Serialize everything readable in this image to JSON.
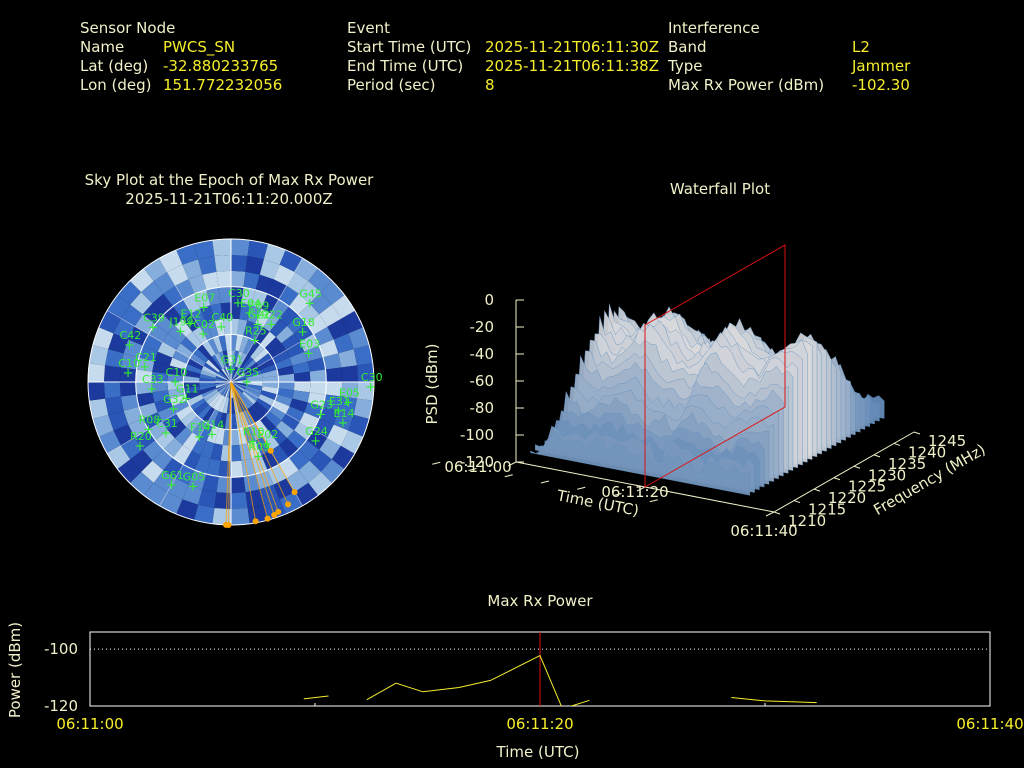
{
  "header": {
    "sensor": {
      "title": "Sensor Node",
      "name_label": "Name",
      "name": "PWCS_SN",
      "lat_label": "Lat (deg)",
      "lat": "-32.880233765",
      "lon_label": "Lon (deg)",
      "lon": "151.772232056"
    },
    "event": {
      "title": "Event",
      "start_label": "Start Time (UTC)",
      "start": "2025-11-21T06:11:30Z",
      "end_label": "End Time (UTC)",
      "end": "2025-11-21T06:11:38Z",
      "period_label": "Period (sec)",
      "period": "8"
    },
    "interference": {
      "title": "Interference",
      "band_label": "Band",
      "band": "L2",
      "type_label": "Type",
      "type": "Jammer",
      "power_label": "Max Rx Power (dBm)",
      "power": "-102.30"
    }
  },
  "colors": {
    "label": "#f2f0c8",
    "value": "#f6ee2a",
    "satellite": "#33ee33",
    "track": "#ffa500",
    "marker": "#dd1111",
    "axis": "#f2f0c8",
    "sky_dark": "#1f3fa8",
    "sky_light": "#9ec4e4"
  },
  "chart_data": [
    {
      "type": "scatter",
      "subtype": "polar-skyplot",
      "title": "Sky Plot at the Epoch of Max Rx Power",
      "subtitle": "2025-11-21T06:11:20.000Z",
      "rings_elevation_deg": [
        0,
        30,
        60,
        90
      ],
      "satellites": [
        {
          "id": "G31",
          "az": 0,
          "el": 82
        },
        {
          "id": "E07",
          "az": 340,
          "el": 40
        },
        {
          "id": "C02",
          "az": 330,
          "el": 55
        },
        {
          "id": "C39",
          "az": 305,
          "el": 30
        },
        {
          "id": "G22",
          "az": 25,
          "el": 50
        },
        {
          "id": "E09",
          "az": 22,
          "el": 45
        },
        {
          "id": "R22",
          "az": 35,
          "el": 46
        },
        {
          "id": "G45",
          "az": 45,
          "el": 20
        },
        {
          "id": "G18",
          "az": 55,
          "el": 35
        },
        {
          "id": "E03",
          "az": 70,
          "el": 38
        },
        {
          "id": "C30",
          "az": 92,
          "el": 2
        },
        {
          "id": "E12",
          "az": 325,
          "el": 45
        },
        {
          "id": "C30",
          "az": 5,
          "el": 40
        },
        {
          "id": "E04",
          "az": 15,
          "el": 45
        },
        {
          "id": "R25",
          "az": 30,
          "el": 60
        },
        {
          "id": "C40",
          "az": 350,
          "el": 55
        },
        {
          "id": "C42",
          "az": 290,
          "el": 22
        },
        {
          "id": "J199",
          "az": 315,
          "el": 45
        },
        {
          "id": "C21",
          "az": 280,
          "el": 35
        },
        {
          "id": "C10",
          "az": 270,
          "el": 55
        },
        {
          "id": "C33",
          "az": 265,
          "el": 40
        },
        {
          "id": "G11",
          "az": 250,
          "el": 60
        },
        {
          "id": "G32",
          "az": 245,
          "el": 50
        },
        {
          "id": "R08",
          "az": 240,
          "el": 30
        },
        {
          "id": "C31",
          "az": 232,
          "el": 38
        },
        {
          "id": "R20",
          "az": 235,
          "el": 20
        },
        {
          "id": "F14",
          "az": 210,
          "el": 50
        },
        {
          "id": "G14",
          "az": 200,
          "el": 55
        },
        {
          "id": "G23",
          "az": 110,
          "el": 30
        },
        {
          "id": "E05",
          "az": 100,
          "el": 15
        },
        {
          "id": "E31",
          "az": 105,
          "el": 20
        },
        {
          "id": "E14",
          "az": 110,
          "el": 15
        },
        {
          "id": "G24",
          "az": 125,
          "el": 25
        },
        {
          "id": "E02",
          "az": 150,
          "el": 45
        },
        {
          "id": "R09",
          "az": 160,
          "el": 40
        },
        {
          "id": "R10",
          "az": 160,
          "el": 50
        },
        {
          "id": "G05",
          "az": 200,
          "el": 20
        },
        {
          "id": "G61",
          "az": 210,
          "el": 15
        },
        {
          "id": "C10",
          "az": 275,
          "el": 25
        },
        {
          "id": "G35",
          "az": 90,
          "el": 80
        }
      ],
      "jammer_track_az_deg": [
        150,
        155,
        160,
        162,
        165,
        170,
        181,
        182,
        150
      ],
      "jammer_track_el_deg": [
        10,
        5,
        3,
        2,
        1,
        1,
        0,
        0,
        40
      ]
    },
    {
      "type": "area",
      "subtype": "waterfall-3d",
      "title": "Waterfall Plot",
      "zlabel": "PSD (dBm)",
      "xlabel": "Time (UTC)",
      "ylabel": "Frequency (MHz)",
      "zlim": [
        -120,
        0
      ],
      "z_ticks": [
        "0",
        "-20",
        "-40",
        "-60",
        "-80",
        "-100",
        "-120"
      ],
      "time_ticks": [
        "06:11:00",
        "06:11:20",
        "06:11:40"
      ],
      "freq_ticks": [
        "1210",
        "1215",
        "1220",
        "1225",
        "1230",
        "1235",
        "1240",
        "1245"
      ],
      "marker_time": "06:11:20",
      "peak_psd_dbm": -20
    },
    {
      "type": "line",
      "title": "Max Rx Power",
      "xlabel": "Time (UTC)",
      "ylabel": "Power (dBm)",
      "x_ticks": [
        "06:11:00",
        "06:11:20",
        "06:11:40"
      ],
      "y_ticks": [
        "-100",
        "-120"
      ],
      "ylim": [
        -120,
        -94
      ],
      "marker_x_sec": 20,
      "series": [
        {
          "x": [
            9.5,
            10.6
          ],
          "y": [
            -117.5,
            -116.5
          ]
        },
        {
          "x": [
            12.3,
            13.6,
            14.8,
            16.4,
            17.8
          ],
          "y": [
            -117.8,
            -112.0,
            -115.0,
            -113.5,
            -111.0
          ]
        },
        {
          "x": [
            17.8,
            20.0,
            21.0
          ],
          "y": [
            -111.0,
            -102.3,
            -121.0
          ]
        },
        {
          "x": [
            21.0,
            22.2
          ],
          "y": [
            -121.0,
            -118.0
          ]
        },
        {
          "x": [
            28.5,
            30.0,
            31.5,
            32.3
          ],
          "y": [
            -117.0,
            -118.2,
            -118.6,
            -118.8
          ]
        }
      ]
    }
  ]
}
